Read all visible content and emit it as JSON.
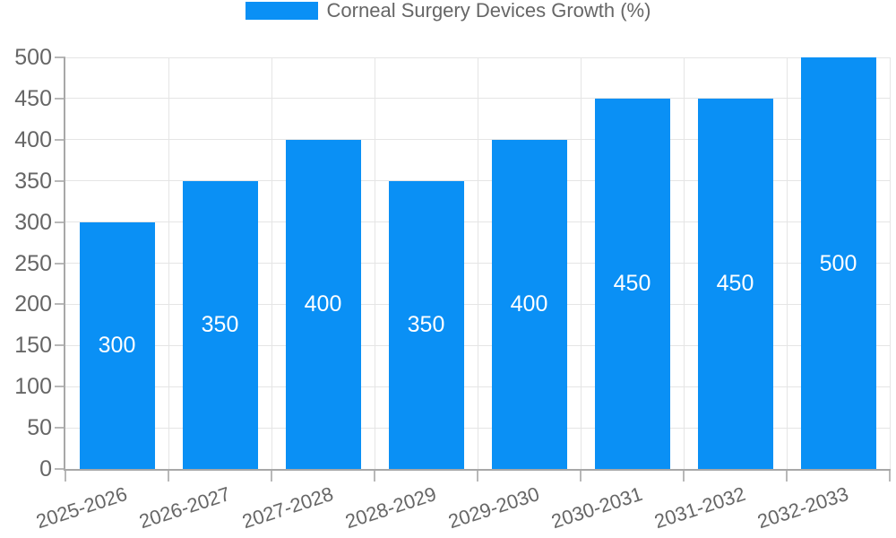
{
  "chart_data": {
    "type": "bar",
    "legend_label": "Corneal Surgery Devices Growth (%)",
    "legend_position": "top",
    "categories": [
      "2025-2026",
      "2026-2027",
      "2027-2028",
      "2028-2029",
      "2029-2030",
      "2030-2031",
      "2031-2032",
      "2032-2033"
    ],
    "values": [
      300,
      350,
      400,
      350,
      400,
      450,
      450,
      500
    ],
    "value_labels": [
      "300",
      "350",
      "400",
      "350",
      "400",
      "450",
      "450",
      "500"
    ],
    "ylim": [
      0,
      500
    ],
    "yticks": [
      0,
      50,
      100,
      150,
      200,
      250,
      300,
      350,
      400,
      450,
      500
    ],
    "grid": "on",
    "colors": {
      "bar": "#0A90F5",
      "bar_label_text": "#ffffff",
      "axis_text": "#666666",
      "gridline": "#e5e5e5",
      "axis_line": "#a8a8a8",
      "tick_line": "#b8b8b8",
      "background": "#ffffff"
    }
  }
}
